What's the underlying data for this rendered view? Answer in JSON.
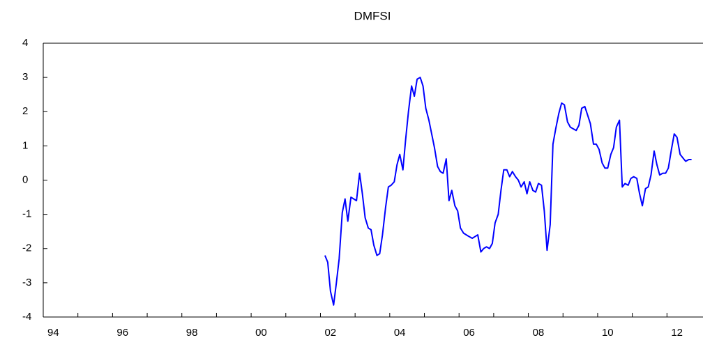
{
  "chart_data": {
    "type": "line",
    "title": "DMFSI",
    "xlim": [
      1994,
      2013
    ],
    "ylim": [
      -4,
      4
    ],
    "yticks": [
      -4,
      -3,
      -2,
      -1,
      0,
      1,
      2,
      3,
      4
    ],
    "xticks": [
      {
        "value": 1994,
        "label": "94"
      },
      {
        "value": 1996,
        "label": "96"
      },
      {
        "value": 1998,
        "label": "98"
      },
      {
        "value": 2000,
        "label": "00"
      },
      {
        "value": 2002,
        "label": "02"
      },
      {
        "value": 2004,
        "label": "04"
      },
      {
        "value": 2006,
        "label": "06"
      },
      {
        "value": 2008,
        "label": "08"
      },
      {
        "value": 2010,
        "label": "10"
      },
      {
        "value": 2012,
        "label": "12"
      }
    ],
    "series": [
      {
        "color": "#0000ff",
        "x": [
          2002.13,
          2002.21,
          2002.29,
          2002.38,
          2002.46,
          2002.54,
          2002.63,
          2002.71,
          2002.79,
          2002.88,
          2002.96,
          2003.04,
          2003.13,
          2003.21,
          2003.29,
          2003.38,
          2003.46,
          2003.54,
          2003.63,
          2003.71,
          2003.79,
          2003.88,
          2003.96,
          2004.04,
          2004.13,
          2004.21,
          2004.29,
          2004.38,
          2004.46,
          2004.54,
          2004.63,
          2004.71,
          2004.79,
          2004.88,
          2004.96,
          2005.04,
          2005.13,
          2005.21,
          2005.29,
          2005.38,
          2005.46,
          2005.54,
          2005.63,
          2005.71,
          2005.79,
          2005.88,
          2005.96,
          2006.04,
          2006.13,
          2006.21,
          2006.29,
          2006.38,
          2006.46,
          2006.54,
          2006.63,
          2006.71,
          2006.79,
          2006.88,
          2006.96,
          2007.04,
          2007.13,
          2007.21,
          2007.29,
          2007.38,
          2007.46,
          2007.54,
          2007.63,
          2007.71,
          2007.79,
          2007.88,
          2007.96,
          2008.04,
          2008.13,
          2008.21,
          2008.29,
          2008.38,
          2008.46,
          2008.54,
          2008.63,
          2008.71,
          2008.79,
          2008.88,
          2008.96,
          2009.04,
          2009.13,
          2009.21,
          2009.29,
          2009.38,
          2009.46,
          2009.54,
          2009.63,
          2009.71,
          2009.79,
          2009.88,
          2009.96,
          2010.04,
          2010.13,
          2010.21,
          2010.29,
          2010.38,
          2010.46,
          2010.54,
          2010.63,
          2010.71,
          2010.79,
          2010.88,
          2010.96,
          2011.04,
          2011.13,
          2011.21,
          2011.29,
          2011.38,
          2011.46,
          2011.54,
          2011.63,
          2011.71,
          2011.79,
          2011.88,
          2011.96,
          2012.04,
          2012.13,
          2012.21,
          2012.29,
          2012.38,
          2012.46,
          2012.54,
          2012.63,
          2012.71
        ],
        "values": [
          -2.2,
          -2.4,
          -3.25,
          -3.65,
          -3.0,
          -2.3,
          -0.95,
          -0.55,
          -1.2,
          -0.5,
          -0.55,
          -0.6,
          0.2,
          -0.4,
          -1.1,
          -1.4,
          -1.45,
          -1.9,
          -2.2,
          -2.15,
          -1.6,
          -0.8,
          -0.2,
          -0.15,
          -0.05,
          0.45,
          0.75,
          0.3,
          1.2,
          2.0,
          2.75,
          2.45,
          2.95,
          3.0,
          2.75,
          2.1,
          1.75,
          1.35,
          0.95,
          0.4,
          0.25,
          0.2,
          0.62,
          -0.6,
          -0.3,
          -0.75,
          -0.9,
          -1.4,
          -1.55,
          -1.6,
          -1.65,
          -1.7,
          -1.65,
          -1.6,
          -2.1,
          -2.0,
          -1.95,
          -2.0,
          -1.85,
          -1.25,
          -1.0,
          -0.3,
          0.3,
          0.3,
          0.1,
          0.25,
          0.1,
          0.0,
          -0.2,
          -0.05,
          -0.4,
          -0.05,
          -0.3,
          -0.35,
          -0.1,
          -0.15,
          -0.9,
          -2.05,
          -1.3,
          1.05,
          1.5,
          1.95,
          2.25,
          2.2,
          1.7,
          1.55,
          1.5,
          1.45,
          1.6,
          2.1,
          2.15,
          1.9,
          1.65,
          1.05,
          1.05,
          0.9,
          0.5,
          0.35,
          0.35,
          0.75,
          0.95,
          1.55,
          1.75,
          -0.2,
          -0.1,
          -0.15,
          0.05,
          0.1,
          0.05,
          -0.4,
          -0.75,
          -0.25,
          -0.2,
          0.15,
          0.85,
          0.45,
          0.15,
          0.2,
          0.2,
          0.35,
          0.9,
          1.35,
          1.25,
          0.75,
          0.65,
          0.55,
          0.6,
          0.6
        ]
      }
    ]
  }
}
